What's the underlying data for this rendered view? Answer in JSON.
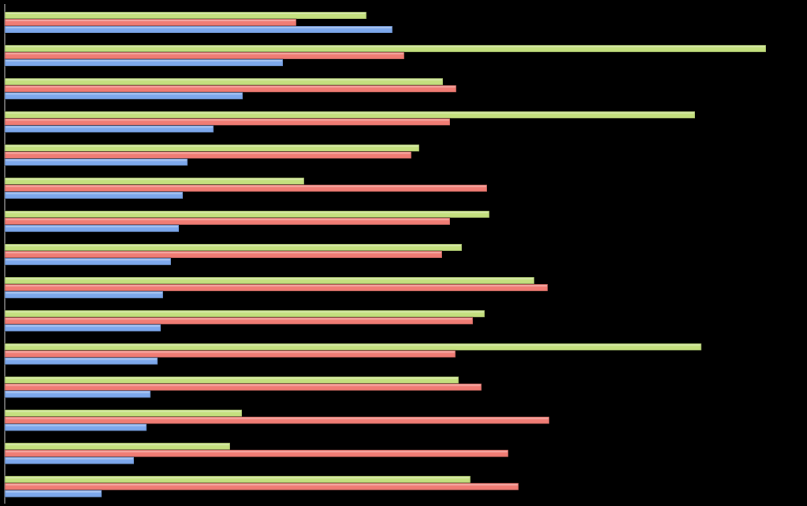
{
  "chart_data": {
    "type": "bar",
    "orientation": "horizontal",
    "categories": [
      null,
      null,
      null,
      null,
      null,
      null,
      null,
      null,
      null,
      null,
      null,
      null,
      null,
      null,
      null
    ],
    "series": [
      {
        "color": "#c4e07e",
        "values": [
          459,
          966,
          556,
          876,
          526,
          380,
          615,
          580,
          672,
          609,
          884,
          576,
          301,
          286,
          591
        ]
      },
      {
        "color": "#f07c74",
        "values": [
          370,
          507,
          573,
          565,
          516,
          612,
          565,
          555,
          689,
          594,
          572,
          605,
          691,
          639,
          652
        ]
      },
      {
        "color": "#7da8ec",
        "values": [
          492,
          353,
          302,
          265,
          232,
          226,
          221,
          211,
          201,
          198,
          194,
          185,
          180,
          164,
          123
        ]
      }
    ],
    "xlim": [
      0,
      1018
    ],
    "background": "#000000"
  }
}
